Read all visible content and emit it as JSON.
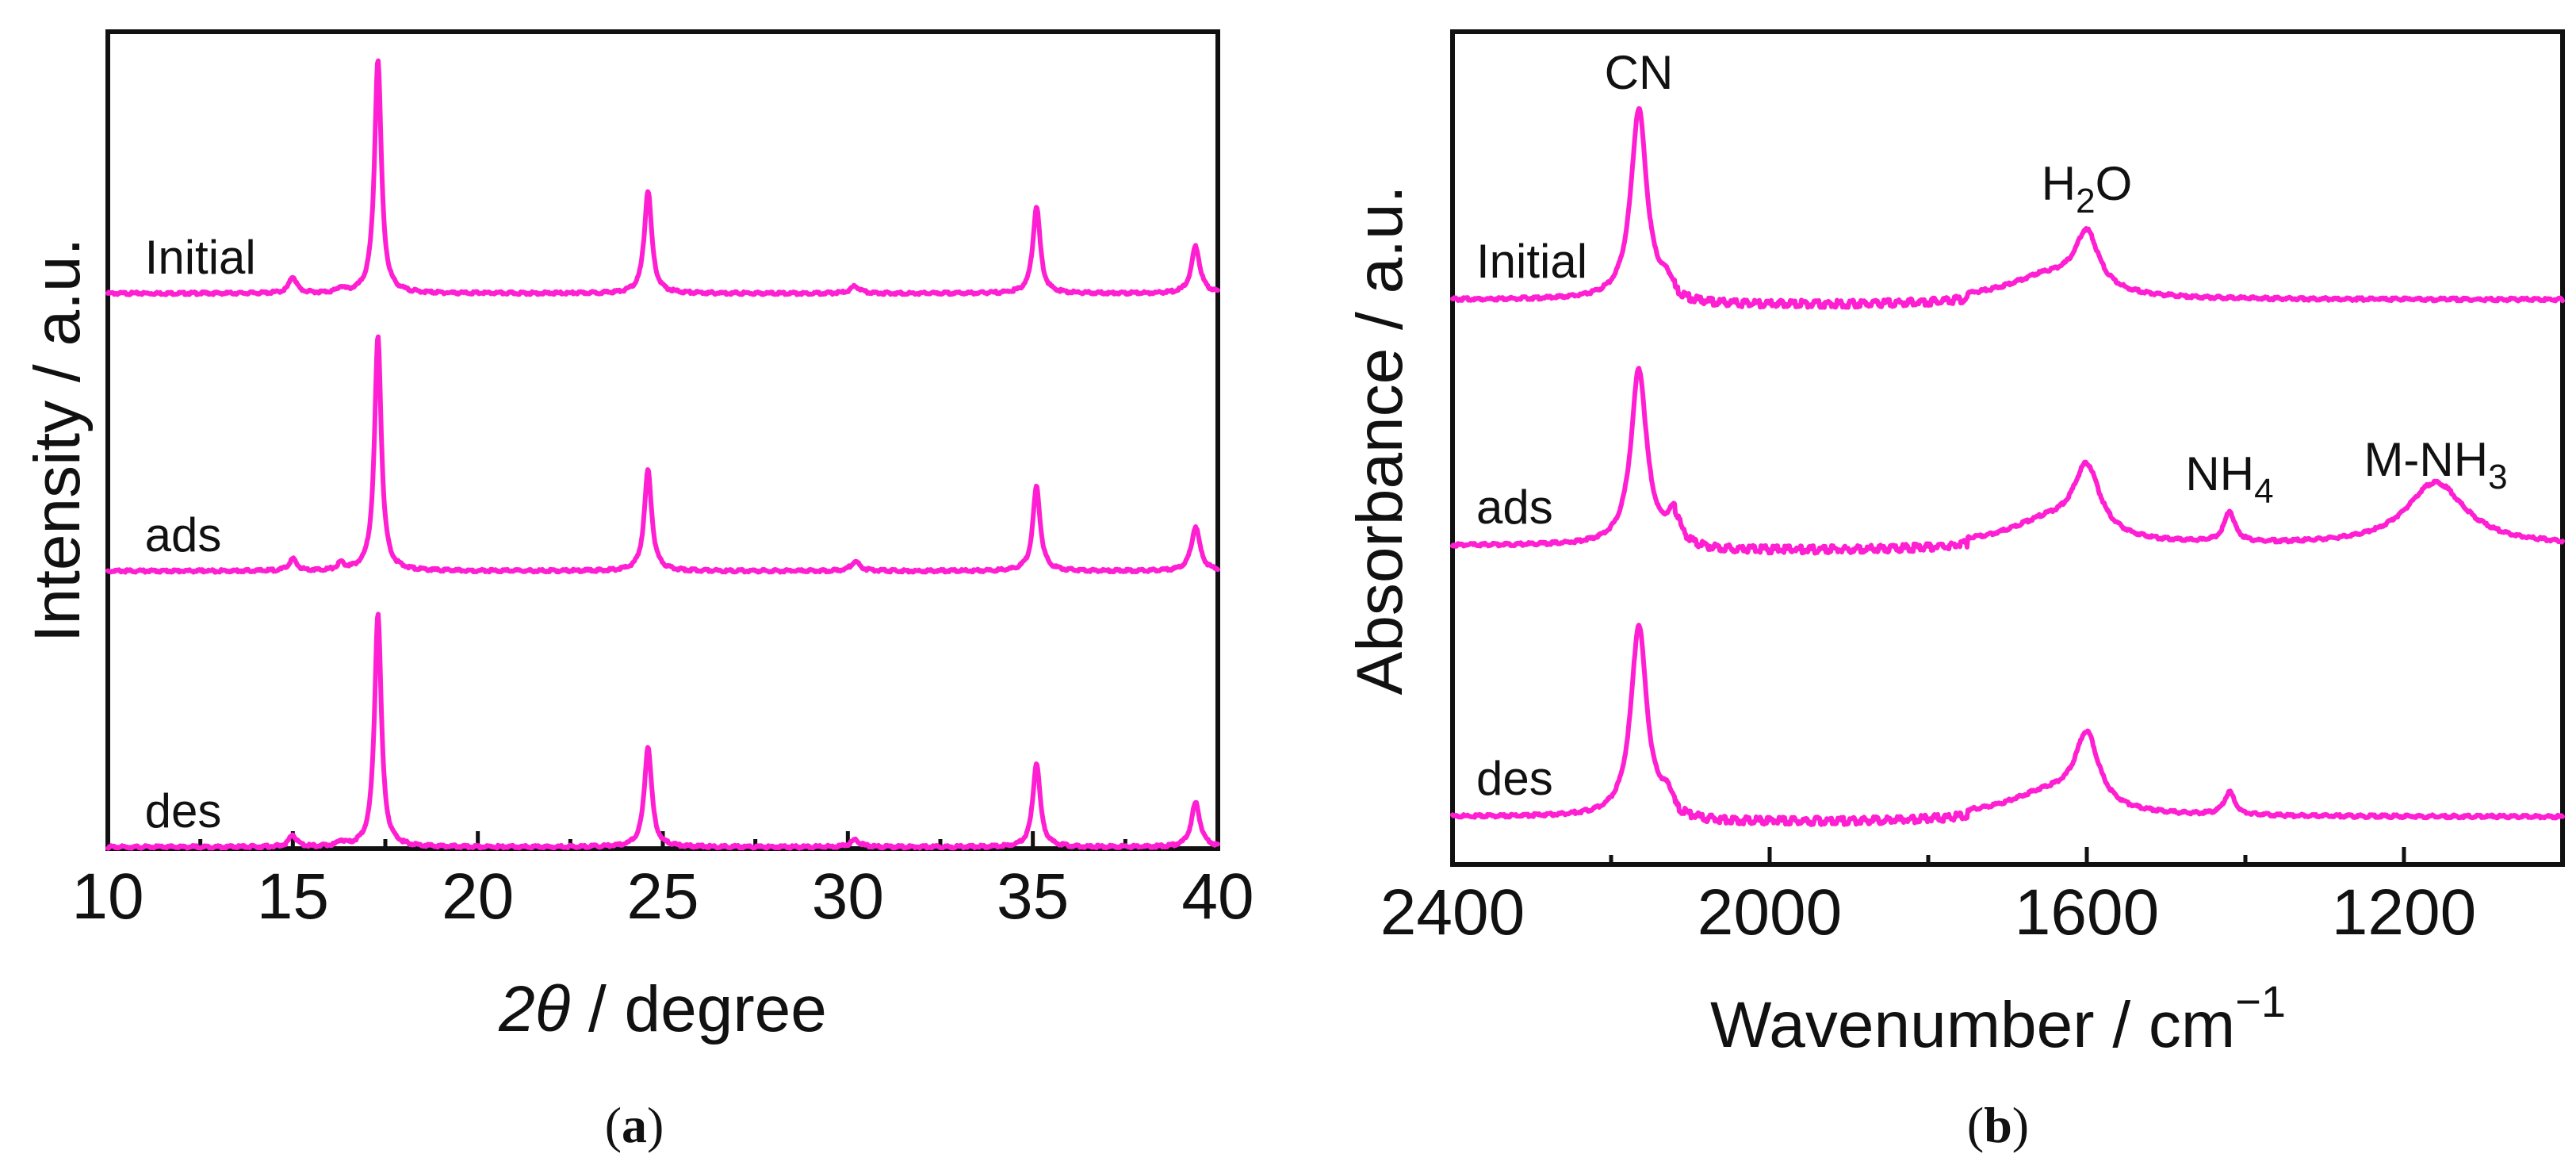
{
  "chart_data": [
    {
      "type": "line",
      "panel": "a",
      "caption": "(a)",
      "xlabel": "2θ / degree",
      "ylabel": "Intensity / a.u.",
      "xlim": [
        10,
        40
      ],
      "x_ticks": [
        10,
        15,
        20,
        25,
        30,
        35,
        40
      ],
      "color": "#ff1fd2",
      "peaks_x": [
        15.0,
        16.3,
        17.3,
        24.6,
        30.2,
        35.1,
        39.4
      ],
      "series": [
        {
          "name": "Initial",
          "offset": 2,
          "peak_heights": [
            0.07,
            0.02,
            1.0,
            0.44,
            0.03,
            0.37,
            0.2
          ]
        },
        {
          "name": "ads",
          "offset": 1,
          "peak_heights": [
            0.05,
            0.03,
            1.0,
            0.43,
            0.04,
            0.36,
            0.19
          ]
        },
        {
          "name": "des",
          "offset": 0,
          "peak_heights": [
            0.05,
            0.02,
            1.0,
            0.43,
            0.03,
            0.36,
            0.19
          ]
        }
      ]
    },
    {
      "type": "line",
      "panel": "b",
      "caption": "(b)",
      "xlabel": "Wavenumber / cm",
      "xlabel_superscript": "−1",
      "ylabel": "Absorbance / a.u.",
      "xlim": [
        2400,
        1000
      ],
      "x_ticks": [
        2400,
        2000,
        1600,
        1200
      ],
      "color": "#ff1fd2",
      "annotations": [
        {
          "text": "CN",
          "x": 2165
        },
        {
          "text": "H",
          "sub": "2",
          "text_after": "O",
          "x": 1600
        },
        {
          "text": "NH",
          "sub": "4",
          "text_after": "",
          "x": 1420
        },
        {
          "text": "M-NH",
          "sub": "3",
          "text_after": "",
          "x": 1160
        }
      ],
      "series": [
        {
          "name": "Initial",
          "offset": 2,
          "bands": [
            {
              "x": 2165,
              "height": 1.0,
              "width": 12
            },
            {
              "x": 2130,
              "height": 0.06,
              "width": 10
            },
            {
              "x": 1600,
              "height": 0.3,
              "width": 18
            },
            {
              "x": 1650,
              "height": 0.12,
              "width": 60
            }
          ]
        },
        {
          "name": "ads",
          "offset": 1,
          "bands": [
            {
              "x": 2165,
              "height": 0.92,
              "width": 12
            },
            {
              "x": 2120,
              "height": 0.15,
              "width": 10
            },
            {
              "x": 1600,
              "height": 0.36,
              "width": 20
            },
            {
              "x": 1650,
              "height": 0.12,
              "width": 60
            },
            {
              "x": 1420,
              "height": 0.16,
              "width": 8
            },
            {
              "x": 1160,
              "height": 0.33,
              "width": 45
            }
          ]
        },
        {
          "name": "des",
          "offset": 0,
          "bands": [
            {
              "x": 2165,
              "height": 1.0,
              "width": 12
            },
            {
              "x": 2130,
              "height": 0.08,
              "width": 10
            },
            {
              "x": 1600,
              "height": 0.38,
              "width": 18
            },
            {
              "x": 1650,
              "height": 0.12,
              "width": 60
            },
            {
              "x": 1420,
              "height": 0.12,
              "width": 8
            }
          ]
        }
      ]
    }
  ]
}
